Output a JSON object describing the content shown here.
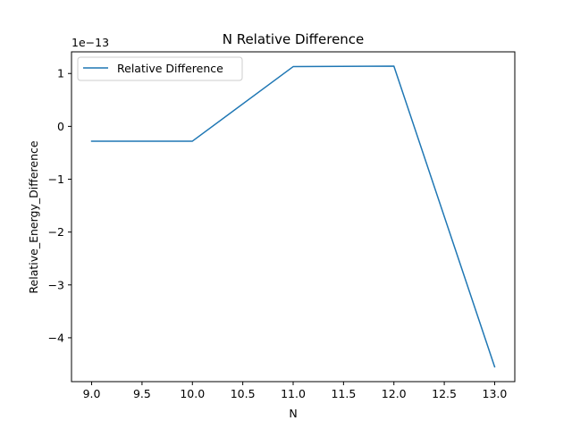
{
  "chart_data": {
    "type": "line",
    "title": "N Relative Difference",
    "xlabel": "N",
    "ylabel": "Relative_Energy_Difference",
    "y_offset_text": "1e−13",
    "x": [
      9.0,
      10.0,
      11.0,
      12.0,
      13.0
    ],
    "series": [
      {
        "name": "Relative Difference",
        "color": "#1f77b4",
        "values": [
          -0.28,
          -0.28,
          1.13,
          1.14,
          -4.55
        ]
      }
    ],
    "xlim": [
      8.8,
      13.2
    ],
    "ylim": [
      -4.83,
      1.41
    ],
    "x_ticks": [
      9.0,
      9.5,
      10.0,
      10.5,
      11.0,
      11.5,
      12.0,
      12.5,
      13.0
    ],
    "x_tick_labels": [
      "9.0",
      "9.5",
      "10.0",
      "10.5",
      "11.0",
      "11.5",
      "12.0",
      "12.5",
      "13.0"
    ],
    "y_ticks": [
      1,
      0,
      -1,
      -2,
      -3,
      -4
    ],
    "y_tick_labels": [
      "1",
      "0",
      "−1",
      "−2",
      "−3",
      "−4"
    ],
    "grid": false,
    "legend_position": "top-left"
  }
}
